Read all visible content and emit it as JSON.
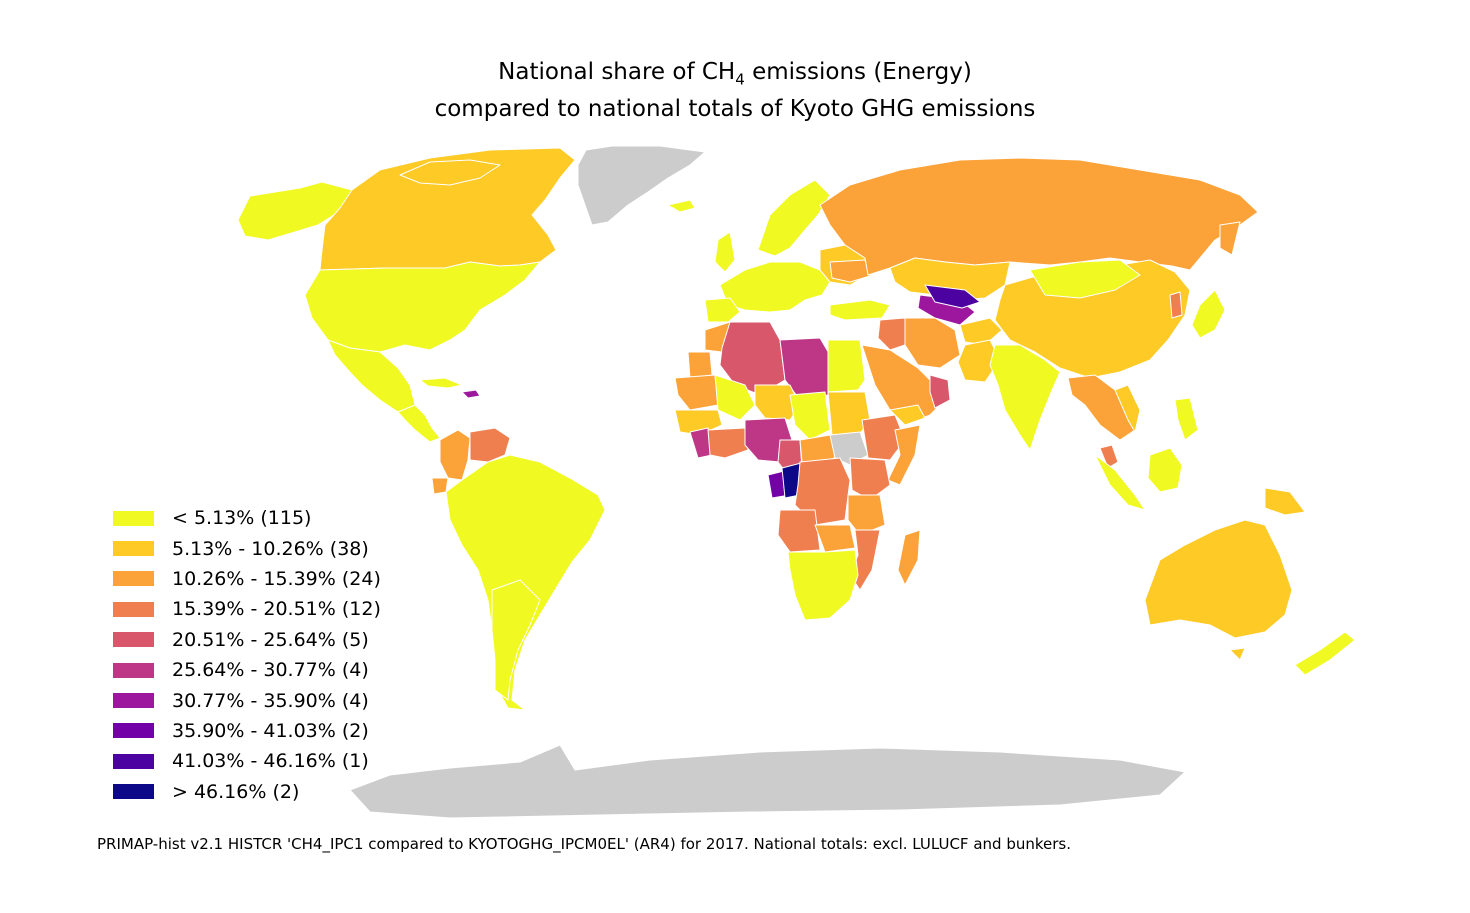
{
  "title": {
    "line1_pre": "National share of CH",
    "line1_sub": "4",
    "line1_post": " emissions (Energy)",
    "line2": "compared to national totals of Kyoto GHG emissions"
  },
  "legend": [
    {
      "label": "< 5.13% (115)",
      "color": "#f0f921"
    },
    {
      "label": "5.13% - 10.26% (38)",
      "color": "#fdca26"
    },
    {
      "label": "10.26% - 15.39% (24)",
      "color": "#fba238"
    },
    {
      "label": "15.39% - 20.51% (12)",
      "color": "#f07f4f"
    },
    {
      "label": "20.51% - 25.64% (5)",
      "color": "#d8576b"
    },
    {
      "label": "25.64% - 30.77% (4)",
      "color": "#bd3786"
    },
    {
      "label": "30.77% - 35.90% (4)",
      "color": "#9c179e"
    },
    {
      "label": "35.90% - 41.03% (2)",
      "color": "#7201a8"
    },
    {
      "label": "41.03% - 46.16% (1)",
      "color": "#4c02a1"
    },
    {
      "label": "> 46.16% (2)",
      "color": "#0d0887"
    }
  ],
  "no_data_color": "#cccccc",
  "footer": "PRIMAP-hist v2.1 HISTCR 'CH4_IPC1 compared to KYOTOGHG_IPCM0EL' (AR4) for 2017. National totals: excl. LULUCF and bunkers."
}
